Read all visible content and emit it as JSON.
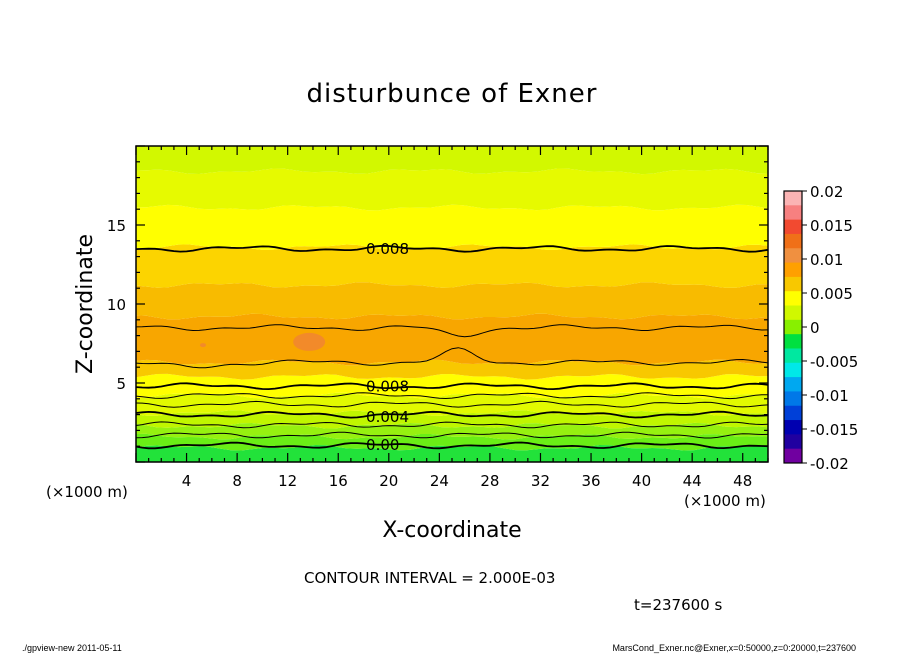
{
  "chart_data": {
    "type": "heatmap",
    "title": "disturbunce of Exner",
    "xlabel": "X-coordinate",
    "ylabel": "Z-coordinate",
    "x_unit": "(×1000 m)",
    "x_unit_right": "(×1000 m)",
    "xlim": [
      0,
      50
    ],
    "ylim": [
      0,
      20
    ],
    "x_ticks": [
      "4",
      "8",
      "12",
      "16",
      "20",
      "24",
      "28",
      "32",
      "36",
      "40",
      "44",
      "48"
    ],
    "y_ticks": [
      "5",
      "10",
      "15"
    ],
    "colorbar": {
      "labels": [
        "0.02",
        "0.015",
        "0.01",
        "0.005",
        "0",
        "-0.005",
        "-0.01",
        "-0.015",
        "-0.02"
      ],
      "min": -0.02,
      "max": 0.02,
      "colors_top_to_bottom": [
        "#fbb4b4",
        "#f78080",
        "#f24a30",
        "#f07018",
        "#f09040",
        "#ffa000",
        "#f8c800",
        "#ffff00",
        "#d0f800",
        "#88f000",
        "#00e040",
        "#00e8a0",
        "#00e8e8",
        "#00a8f0",
        "#0078e8",
        "#0040d8",
        "#0000b0",
        "#2000a0",
        "#7000a0"
      ]
    },
    "bands": [
      {
        "zmax": 0.9,
        "color": "#22e23a",
        "value": -0.001
      },
      {
        "zmax": 1.6,
        "color": "#6aee16",
        "value": 0.001
      },
      {
        "zmax": 2.3,
        "color": "#96f110",
        "value": 0.002
      },
      {
        "zmax": 3.1,
        "color": "#c0f600",
        "value": 0.004
      },
      {
        "zmax": 4.2,
        "color": "#e2fa00",
        "value": 0.006
      },
      {
        "zmax": 5.4,
        "color": "#ffff00",
        "value": 0.007
      },
      {
        "zmax": 6.3,
        "color": "#f8c800",
        "value": 0.008
      },
      {
        "zmax": 9.2,
        "color": "#f8a600",
        "value": 0.011
      },
      {
        "zmax": 11.2,
        "color": "#f8bb00",
        "value": 0.009
      },
      {
        "zmax": 13.6,
        "color": "#fcd400",
        "value": 0.008
      },
      {
        "zmax": 16.1,
        "color": "#ffff00",
        "value": 0.007
      },
      {
        "zmax": 18.4,
        "color": "#e6fa00",
        "value": 0.006
      },
      {
        "zmax": 20.0,
        "color": "#d2f800",
        "value": 0.005
      }
    ],
    "contours": [
      {
        "z": 1.05,
        "heavy": true,
        "label": "0.00",
        "label_x": 18.2
      },
      {
        "z": 1.7,
        "heavy": false,
        "label": "",
        "label_x": null
      },
      {
        "z": 2.35,
        "heavy": false,
        "label": "",
        "label_x": null
      },
      {
        "z": 3.0,
        "heavy": true,
        "label": "0.004",
        "label_x": 18.2
      },
      {
        "z": 3.65,
        "heavy": false,
        "label": "",
        "label_x": null
      },
      {
        "z": 4.2,
        "heavy": false,
        "label": "",
        "label_x": null
      },
      {
        "z": 4.8,
        "heavy": true,
        "label": "0.008",
        "label_x": 18.2
      },
      {
        "z": 6.3,
        "heavy": false,
        "label": "",
        "label_x": null,
        "bump": true
      },
      {
        "z": 8.5,
        "heavy": false,
        "label": "",
        "label_x": null,
        "dip": true
      },
      {
        "z": 13.5,
        "heavy": true,
        "label": "0.008",
        "label_x": 18.2
      }
    ],
    "annotation_contour_interval": "CONTOUR INTERVAL = 2.000E-03",
    "annotation_time": "t=237600 s"
  },
  "footer": {
    "left": "./gpview-new   2011-05-11",
    "right": "MarsCond_Exner.nc@Exner,x=0:50000,z=0:20000,t=237600"
  }
}
